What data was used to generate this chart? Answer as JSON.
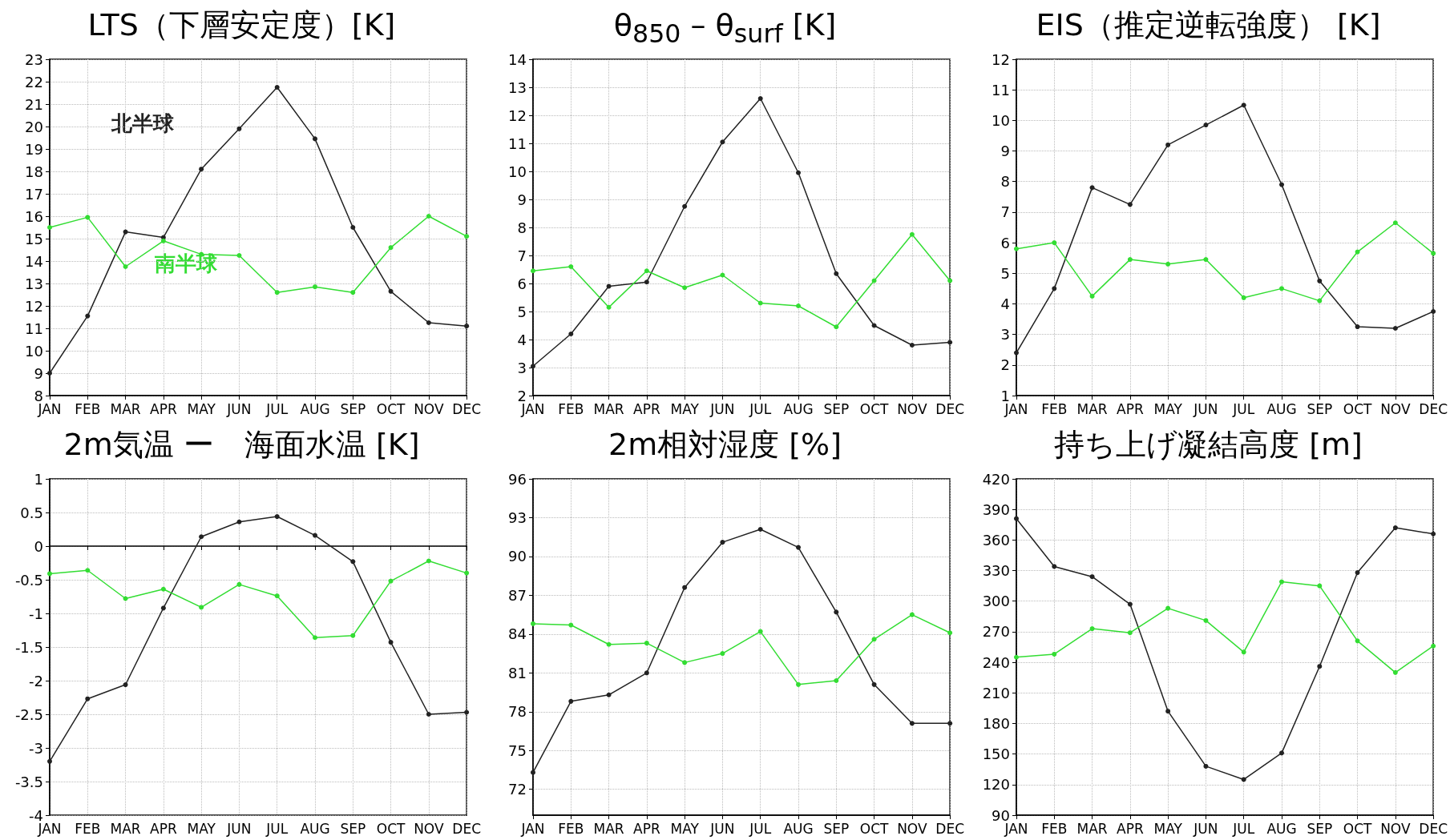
{
  "chart_data": [
    {
      "type": "line",
      "title": "LTS（下層安定度）[K]",
      "categories": [
        "JAN",
        "FEB",
        "MAR",
        "APR",
        "MAY",
        "JUN",
        "JUL",
        "AUG",
        "SEP",
        "OCT",
        "NOV",
        "DEC"
      ],
      "ylim": [
        8,
        23
      ],
      "yticks": [
        8,
        9,
        10,
        11,
        12,
        13,
        14,
        15,
        16,
        17,
        18,
        19,
        20,
        21,
        22,
        23
      ],
      "grid": true,
      "marker": "circle",
      "legend": false,
      "series": [
        {
          "name": "北半球",
          "color": "#222222",
          "values": [
            9.0,
            11.55,
            15.3,
            15.05,
            18.1,
            19.9,
            21.75,
            19.45,
            15.5,
            12.65,
            11.25,
            11.1
          ]
        },
        {
          "name": "南半球",
          "color": "#33dd33",
          "values": [
            15.5,
            15.95,
            13.75,
            14.9,
            14.3,
            14.25,
            12.6,
            12.85,
            12.6,
            14.6,
            16.0,
            15.1
          ]
        }
      ]
    },
    {
      "type": "line",
      "title": "θ$_{850}$ – θ$_{surf}$    [K]",
      "categories": [
        "JAN",
        "FEB",
        "MAR",
        "APR",
        "MAY",
        "JUN",
        "JUL",
        "AUG",
        "SEP",
        "OCT",
        "NOV",
        "DEC"
      ],
      "ylim": [
        2,
        14
      ],
      "yticks": [
        2,
        3,
        4,
        5,
        6,
        7,
        8,
        9,
        10,
        11,
        12,
        13,
        14
      ],
      "grid": true,
      "marker": "circle",
      "legend": false,
      "series": [
        {
          "color": "#222222",
          "values": [
            3.05,
            4.2,
            5.9,
            6.05,
            8.75,
            11.05,
            12.6,
            9.95,
            6.35,
            4.5,
            3.8,
            3.9
          ]
        },
        {
          "color": "#33dd33",
          "values": [
            6.45,
            6.6,
            5.15,
            6.45,
            5.85,
            6.3,
            5.3,
            5.2,
            4.45,
            6.1,
            7.75,
            6.1
          ]
        }
      ]
    },
    {
      "type": "line",
      "title": "EIS（推定逆転強度） [K]",
      "categories": [
        "JAN",
        "FEB",
        "MAR",
        "APR",
        "MAY",
        "JUN",
        "JUL",
        "AUG",
        "SEP",
        "OCT",
        "NOV",
        "DEC"
      ],
      "ylim": [
        1,
        12
      ],
      "yticks": [
        1,
        2,
        3,
        4,
        5,
        6,
        7,
        8,
        9,
        10,
        11,
        12
      ],
      "grid": true,
      "marker": "circle",
      "legend": false,
      "series": [
        {
          "color": "#222222",
          "values": [
            2.4,
            4.5,
            7.8,
            7.25,
            9.2,
            9.85,
            10.5,
            7.9,
            4.75,
            3.25,
            3.2,
            3.75
          ]
        },
        {
          "color": "#33dd33",
          "values": [
            5.8,
            6.0,
            4.25,
            5.45,
            5.3,
            5.45,
            4.2,
            4.5,
            4.1,
            5.7,
            6.65,
            5.65
          ]
        }
      ]
    },
    {
      "type": "line",
      "title": "2m気温 ー　海面水温  [K]",
      "categories": [
        "JAN",
        "FEB",
        "MAR",
        "APR",
        "MAY",
        "JUN",
        "JUL",
        "AUG",
        "SEP",
        "OCT",
        "NOV",
        "DEC"
      ],
      "ylim": [
        -4,
        1
      ],
      "yticks": [
        -4,
        -3.5,
        -3,
        -2.5,
        -2,
        -1.5,
        -1,
        -0.5,
        0,
        0.5,
        1
      ],
      "grid": true,
      "marker": "circle",
      "legend": false,
      "series": [
        {
          "color": "#222222",
          "values": [
            -3.2,
            -2.27,
            -2.06,
            -0.92,
            0.14,
            0.36,
            0.44,
            0.16,
            -0.23,
            -1.43,
            -2.5,
            -2.47
          ]
        },
        {
          "color": "#33dd33",
          "values": [
            -0.41,
            -0.36,
            -0.78,
            -0.64,
            -0.91,
            -0.57,
            -0.74,
            -1.36,
            -1.33,
            -0.52,
            -0.22,
            -0.4
          ]
        }
      ]
    },
    {
      "type": "line",
      "title": "2m相対湿度   [%]",
      "categories": [
        "JAN",
        "FEB",
        "MAR",
        "APR",
        "MAY",
        "JUN",
        "JUL",
        "AUG",
        "SEP",
        "OCT",
        "NOV",
        "DEC"
      ],
      "ylim": [
        70,
        96
      ],
      "yticks": [
        72,
        75,
        78,
        81,
        84,
        87,
        90,
        93,
        96
      ],
      "grid": true,
      "marker": "circle",
      "legend": false,
      "series": [
        {
          "color": "#222222",
          "values": [
            73.3,
            78.8,
            79.3,
            81.0,
            87.6,
            91.1,
            92.1,
            90.7,
            85.7,
            80.1,
            77.1,
            77.1
          ]
        },
        {
          "color": "#33dd33",
          "values": [
            84.8,
            84.7,
            83.2,
            83.3,
            81.8,
            82.5,
            84.2,
            80.1,
            80.4,
            83.6,
            85.5,
            84.1
          ]
        }
      ]
    },
    {
      "type": "line",
      "title": "持ち上げ凝結高度   [m]",
      "categories": [
        "JAN",
        "FEB",
        "MAR",
        "APR",
        "MAY",
        "JUN",
        "JUL",
        "AUG",
        "SEP",
        "OCT",
        "NOV",
        "DEC"
      ],
      "ylim": [
        90,
        420
      ],
      "yticks": [
        90,
        120,
        150,
        180,
        210,
        240,
        270,
        300,
        330,
        360,
        390,
        420
      ],
      "grid": true,
      "marker": "circle",
      "legend": false,
      "series": [
        {
          "color": "#222222",
          "values": [
            381,
            334,
            324,
            297,
            192,
            138,
            125,
            151,
            236,
            328,
            372,
            366
          ]
        },
        {
          "color": "#33dd33",
          "values": [
            245,
            248,
            273,
            269,
            293,
            281,
            250,
            319,
            315,
            261,
            230,
            256
          ]
        }
      ]
    }
  ]
}
